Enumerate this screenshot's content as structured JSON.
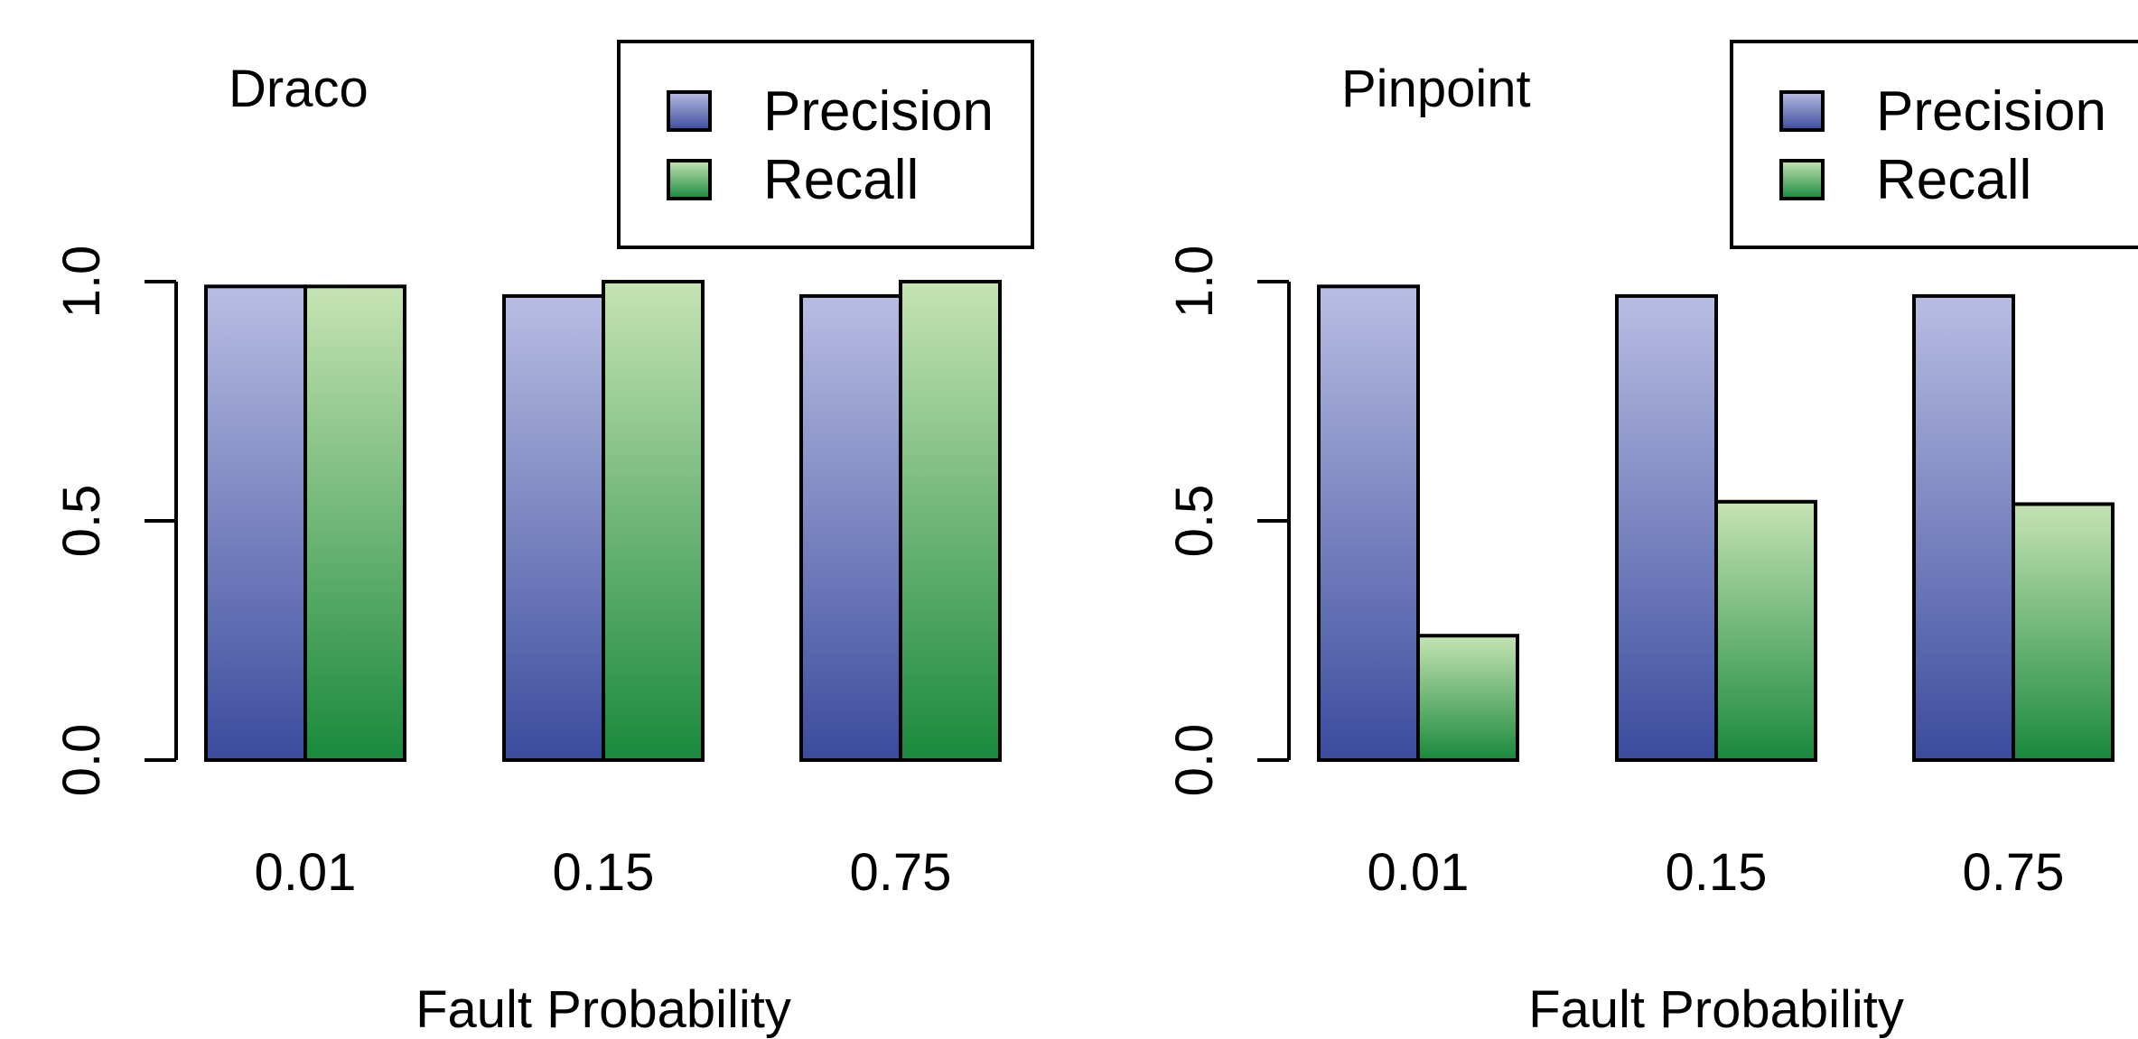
{
  "colors": {
    "precision_top": "#b8bde2",
    "precision_bottom": "#3a4b9d",
    "recall_top": "#c6e3b4",
    "recall_bottom": "#19893c",
    "stroke": "#000000"
  },
  "chart_data": [
    {
      "type": "bar",
      "title": "Draco",
      "xlabel": "Fault Probability",
      "ylabel": "",
      "categories": [
        "0.01",
        "0.15",
        "0.75"
      ],
      "series": [
        {
          "name": "Precision",
          "values": [
            0.99,
            0.97,
            0.97
          ]
        },
        {
          "name": "Recall",
          "values": [
            0.99,
            1.0,
            1.0
          ]
        }
      ],
      "ylim": [
        0,
        1
      ],
      "yticks": [
        "0.0",
        "0.5",
        "1.0"
      ],
      "legend": "top-right",
      "grid": false
    },
    {
      "type": "bar",
      "title": "Pinpoint",
      "xlabel": "Fault Probability",
      "ylabel": "",
      "categories": [
        "0.01",
        "0.15",
        "0.75"
      ],
      "series": [
        {
          "name": "Precision",
          "values": [
            0.99,
            0.97,
            0.97
          ]
        },
        {
          "name": "Recall",
          "values": [
            0.26,
            0.54,
            0.535
          ]
        }
      ],
      "ylim": [
        0,
        1
      ],
      "yticks": [
        "0.0",
        "0.5",
        "1.0"
      ],
      "legend": "top-right",
      "grid": false
    }
  ]
}
